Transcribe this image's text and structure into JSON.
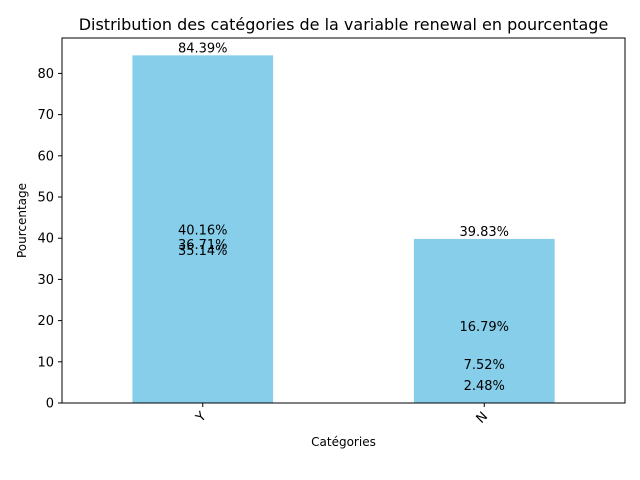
{
  "chart_data": {
    "type": "bar",
    "title": "Distribution des catégories de la variable renewal en pourcentage",
    "xlabel": "Catégories",
    "ylabel": "Pourcentage",
    "categories": [
      "Y",
      "N"
    ],
    "values": [
      84.39,
      39.83
    ],
    "ylim": [
      0,
      88.6
    ],
    "yticks": [
      0,
      10,
      20,
      30,
      40,
      50,
      60,
      70,
      80
    ],
    "grid": false,
    "bar_color": "#87ceeb",
    "data_labels": [
      {
        "category": "Y",
        "y": 84.39,
        "text": "84.39%"
      },
      {
        "category": "Y",
        "y": 40.16,
        "text": "40.16%"
      },
      {
        "category": "Y",
        "y": 36.71,
        "text": "36.71%"
      },
      {
        "category": "Y",
        "y": 35.14,
        "text": "35.14%"
      },
      {
        "category": "N",
        "y": 39.83,
        "text": "39.83%"
      },
      {
        "category": "N",
        "y": 16.79,
        "text": "16.79%"
      },
      {
        "category": "N",
        "y": 7.52,
        "text": "7.52%"
      },
      {
        "category": "N",
        "y": 2.48,
        "text": "2.48%"
      }
    ]
  }
}
